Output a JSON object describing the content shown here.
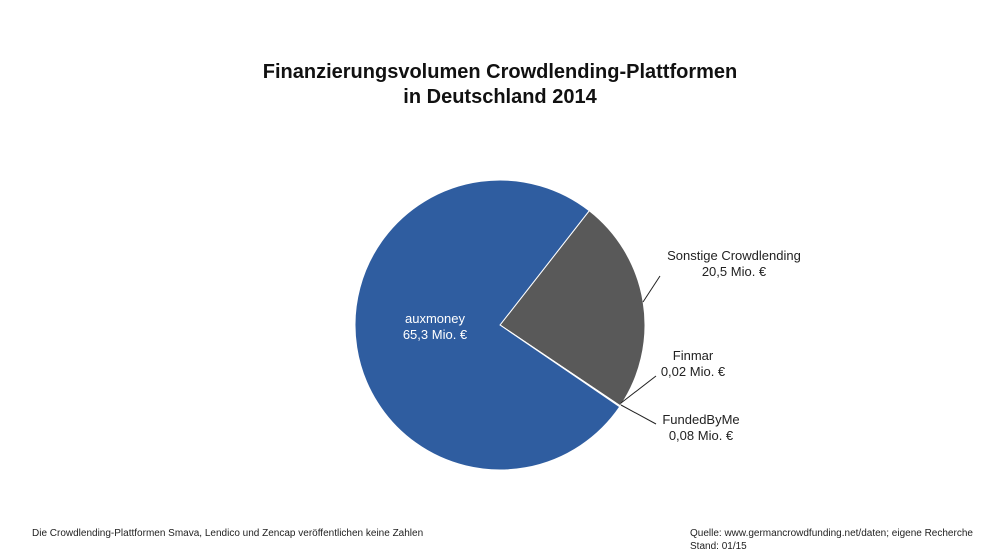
{
  "chart_data": {
    "type": "pie",
    "title": "Finanzierungsvolumen Crowdlending-Plattformen",
    "subtitle": "in Deutschland 2014",
    "categories": [
      "Sonstige Crowdlending",
      "Finmar",
      "FundedByMe",
      "auxmoney"
    ],
    "values": [
      20.5,
      0.02,
      0.08,
      65.3
    ],
    "value_labels": [
      "20,5 Mio. €",
      "0,02 Mio. €",
      "0,08 Mio. €",
      "65,3 Mio. €"
    ],
    "colors": [
      "#595959",
      "#a5a5a5",
      "#7f7f7f",
      "#2f5da0"
    ],
    "note": "Die Crowdlending-Plattformen Smava, Lendico und Zencap veröffentlichen keine Zahlen",
    "source": "Quelle: www.germancrowdfunding.net/daten; eigene Recherche",
    "date": "Stand: 01/15"
  }
}
